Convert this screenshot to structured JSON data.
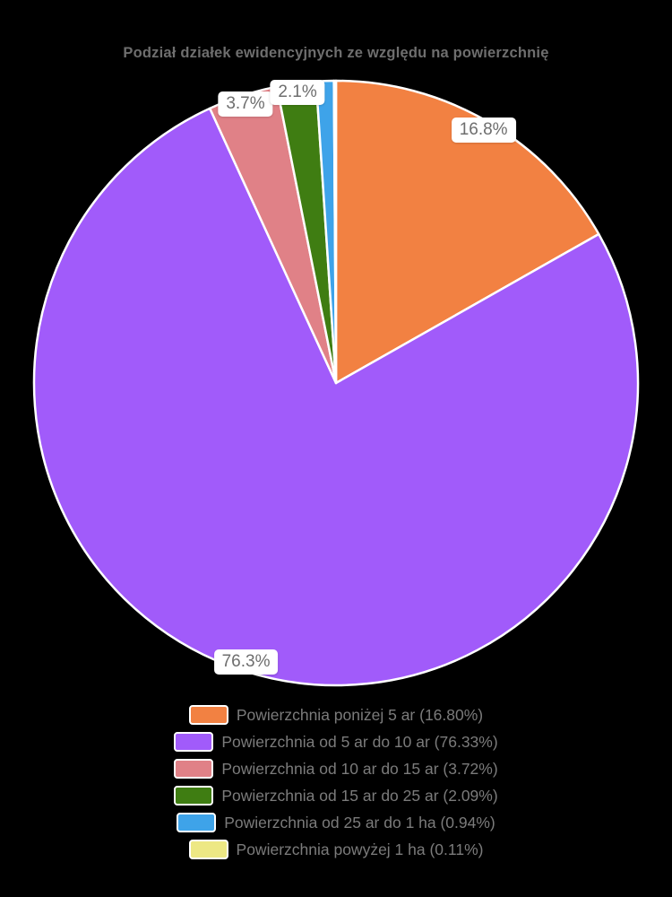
{
  "chart_data": {
    "type": "pie",
    "title": "Podział działek ewidencyjnych ze względu na powierzchnię",
    "legend_position": "bottom",
    "start_angle_deg": 0,
    "direction": "clockwise",
    "slices": [
      {
        "label": "Powierzchnia poniżej 5 ar (16.80%)",
        "value": 16.8,
        "color": "#F28142",
        "pie_label": "16.8%"
      },
      {
        "label": "Powierzchnia od 5 ar do 10 ar (76.33%)",
        "value": 76.33,
        "color": "#A15BFA",
        "pie_label": "76.3%"
      },
      {
        "label": "Powierzchnia od 10 ar do 15 ar (3.72%)",
        "value": 3.72,
        "color": "#E08187",
        "pie_label": "3.7%"
      },
      {
        "label": "Powierzchnia od 15 ar do 25 ar (2.09%)",
        "value": 2.09,
        "color": "#3F7D12",
        "pie_label": "2.1%"
      },
      {
        "label": "Powierzchnia od 25 ar do 1 ha (0.94%)",
        "value": 0.94,
        "color": "#3EA3E9",
        "pie_label": ""
      },
      {
        "label": "Powierzchnia powyżej 1 ha (0.11%)",
        "value": 0.11,
        "color": "#EDE884",
        "pie_label": ""
      }
    ]
  },
  "colors": {
    "background": "#000000",
    "title_text": "#6E6E6E",
    "legend_text": "#7B7B7B",
    "label_box_bg": "#FFFFFF",
    "slice_border": "#FFFFFF"
  }
}
